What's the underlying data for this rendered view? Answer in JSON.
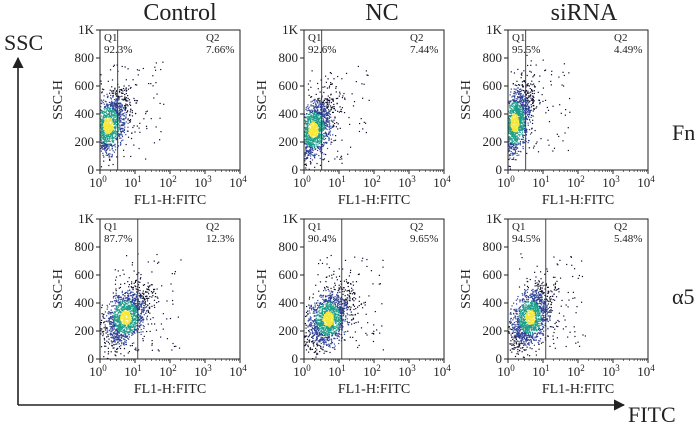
{
  "figure": {
    "columns": [
      "Control",
      "NC",
      "siRNA"
    ],
    "rows": [
      "Fn",
      "α5"
    ],
    "y_axis_arrow_label": "SSC",
    "x_axis_arrow_label": "FITC",
    "colors": {
      "ink": "#222222",
      "dense": "#f6e73a",
      "mid": "#1e9e8a",
      "low": "#2c3f93",
      "sparse": "#0b0b2a"
    }
  },
  "chart_data": [
    {
      "type": "scatter",
      "row": "Fn",
      "column": "Control",
      "xlabel": "FL1-H:FITC",
      "ylabel": "SSC-H",
      "x_scale": "log",
      "xlim": [
        1,
        10000
      ],
      "ylim": [
        0,
        1000
      ],
      "x_ticks": [
        "10^0",
        "10^1",
        "10^2",
        "10^3",
        "10^4"
      ],
      "y_ticks": [
        0,
        200,
        400,
        600,
        800,
        "1K"
      ],
      "gate_x": 3.2,
      "quadrants": [
        {
          "name": "Q1",
          "percent": "92.3%"
        },
        {
          "name": "Q2",
          "percent": "7.66%"
        }
      ],
      "cloud": {
        "center_log_x": 0.22,
        "center_y": 320,
        "spread_log_x": 0.3,
        "spread_y": 120,
        "tilt": 0.55,
        "points": 1400
      }
    },
    {
      "type": "scatter",
      "row": "Fn",
      "column": "NC",
      "xlabel": "FL1-H:FITC",
      "ylabel": "SSC-H",
      "x_scale": "log",
      "xlim": [
        1,
        10000
      ],
      "ylim": [
        0,
        1000
      ],
      "x_ticks": [
        "10^0",
        "10^1",
        "10^2",
        "10^3",
        "10^4"
      ],
      "y_ticks": [
        0,
        200,
        400,
        600,
        800,
        "1K"
      ],
      "gate_x": 3.2,
      "quadrants": [
        {
          "name": "Q1",
          "percent": "92.6%"
        },
        {
          "name": "Q2",
          "percent": "7.44%"
        }
      ],
      "cloud": {
        "center_log_x": 0.25,
        "center_y": 290,
        "spread_log_x": 0.3,
        "spread_y": 115,
        "tilt": 0.5,
        "points": 1400
      }
    },
    {
      "type": "scatter",
      "row": "Fn",
      "column": "siRNA",
      "xlabel": "FL1-H:FITC",
      "ylabel": "SSC-H",
      "x_scale": "log",
      "xlim": [
        1,
        10000
      ],
      "ylim": [
        0,
        1000
      ],
      "x_ticks": [
        "10^0",
        "10^1",
        "10^2",
        "10^3",
        "10^4"
      ],
      "y_ticks": [
        0,
        200,
        400,
        600,
        800,
        "1K"
      ],
      "gate_x": 3.2,
      "quadrants": [
        {
          "name": "Q1",
          "percent": "95.5%"
        },
        {
          "name": "Q2",
          "percent": "4.49%"
        }
      ],
      "cloud": {
        "center_log_x": 0.18,
        "center_y": 340,
        "spread_log_x": 0.25,
        "spread_y": 140,
        "tilt": 0.6,
        "points": 1500
      }
    },
    {
      "type": "scatter",
      "row": "α5",
      "column": "Control",
      "xlabel": "FL1-H:FITC",
      "ylabel": "SSC-H",
      "x_scale": "log",
      "xlim": [
        1,
        10000
      ],
      "ylim": [
        0,
        1000
      ],
      "x_ticks": [
        "10^0",
        "10^1",
        "10^2",
        "10^3",
        "10^4"
      ],
      "y_ticks": [
        0,
        200,
        400,
        600,
        800,
        "1K"
      ],
      "gate_x": 12,
      "quadrants": [
        {
          "name": "Q1",
          "percent": "87.7%"
        },
        {
          "name": "Q2",
          "percent": "12.3%"
        }
      ],
      "cloud": {
        "center_log_x": 0.72,
        "center_y": 300,
        "spread_log_x": 0.32,
        "spread_y": 110,
        "tilt": 0.45,
        "points": 1400
      }
    },
    {
      "type": "scatter",
      "row": "α5",
      "column": "NC",
      "xlabel": "FL1-H:FITC",
      "ylabel": "SSC-H",
      "x_scale": "log",
      "xlim": [
        1,
        10000
      ],
      "ylim": [
        0,
        1000
      ],
      "x_ticks": [
        "10^0",
        "10^1",
        "10^2",
        "10^3",
        "10^4"
      ],
      "y_ticks": [
        0,
        200,
        400,
        600,
        800,
        "1K"
      ],
      "gate_x": 12,
      "quadrants": [
        {
          "name": "Q1",
          "percent": "90.4%"
        },
        {
          "name": "Q2",
          "percent": "9.65%"
        }
      ],
      "cloud": {
        "center_log_x": 0.68,
        "center_y": 290,
        "spread_log_x": 0.32,
        "spread_y": 110,
        "tilt": 0.45,
        "points": 1400
      }
    },
    {
      "type": "scatter",
      "row": "α5",
      "column": "siRNA",
      "xlabel": "FL1-H:FITC",
      "ylabel": "SSC-H",
      "x_scale": "log",
      "xlim": [
        1,
        10000
      ],
      "ylim": [
        0,
        1000
      ],
      "x_ticks": [
        "10^0",
        "10^1",
        "10^2",
        "10^3",
        "10^4"
      ],
      "y_ticks": [
        0,
        200,
        400,
        600,
        800,
        "1K"
      ],
      "gate_x": 12,
      "quadrants": [
        {
          "name": "Q1",
          "percent": "94.5%"
        },
        {
          "name": "Q2",
          "percent": "5.48%"
        }
      ],
      "cloud": {
        "center_log_x": 0.62,
        "center_y": 300,
        "spread_log_x": 0.3,
        "spread_y": 110,
        "tilt": 0.45,
        "points": 1400
      }
    }
  ]
}
